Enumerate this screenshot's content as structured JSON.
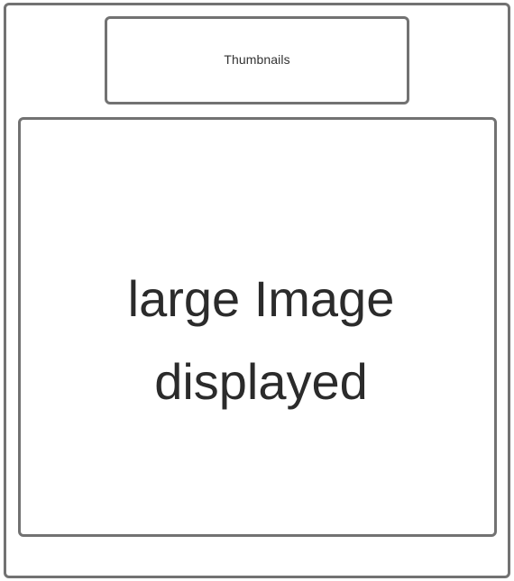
{
  "thumbnails": {
    "label": "Thumbnails"
  },
  "main_image": {
    "label": "large Image displayed"
  },
  "colors": {
    "border": "#727272",
    "text": "#2b2b2b",
    "background": "#ffffff"
  }
}
